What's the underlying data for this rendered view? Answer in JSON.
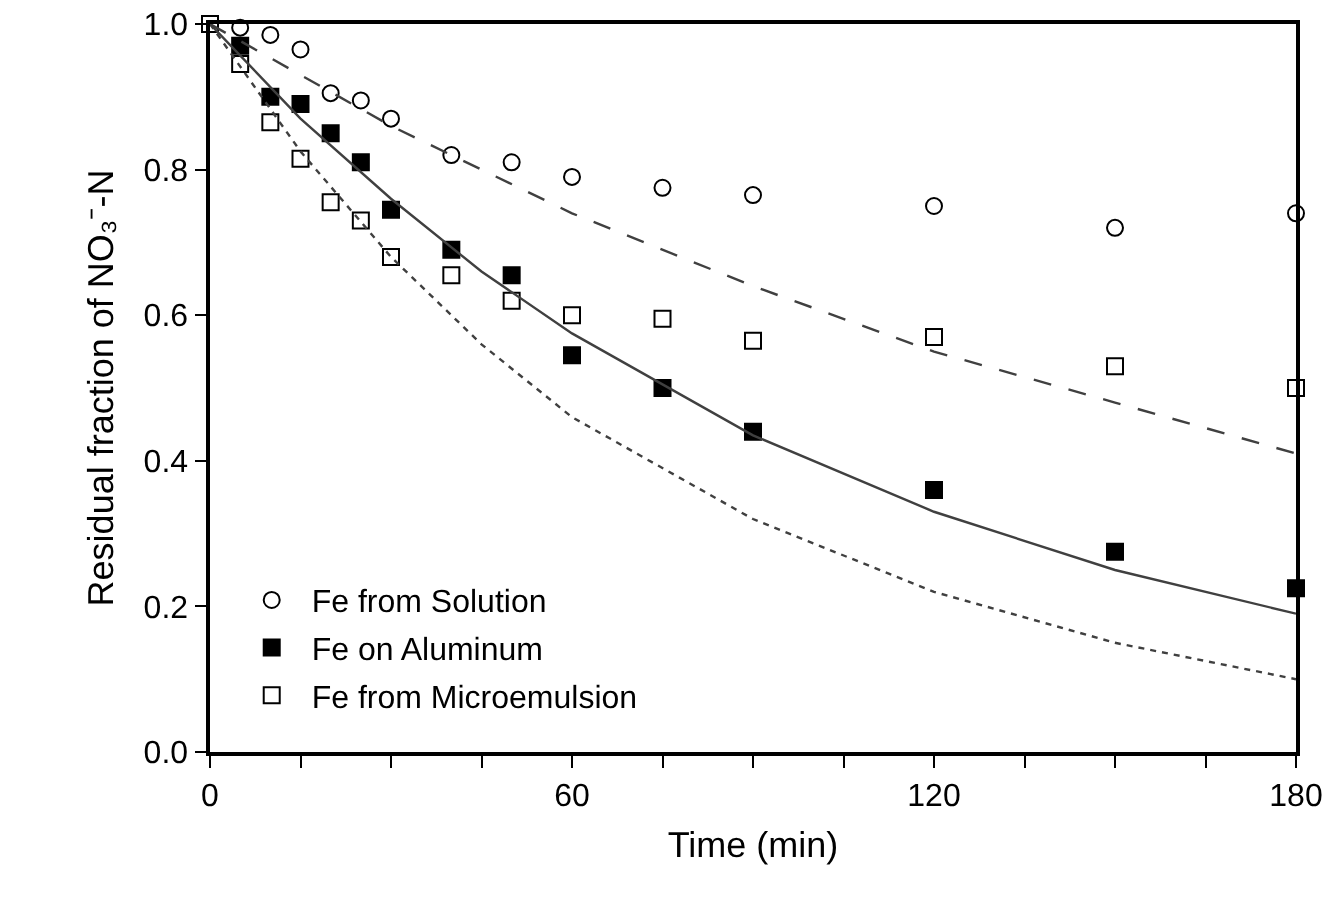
{
  "chart_data": {
    "type": "scatter",
    "xlabel": "Time (min)",
    "ylabel": "Residual fraction of NO₃⁻-N",
    "x": [
      0,
      5,
      10,
      15,
      20,
      25,
      30,
      40,
      50,
      60,
      75,
      90,
      120,
      150,
      180
    ],
    "series": [
      {
        "name": "Fe from Solution",
        "color": "#ffffff",
        "marker": "circle",
        "values": [
          null,
          0.995,
          0.985,
          0.965,
          0.905,
          0.895,
          0.87,
          0.82,
          0.81,
          0.79,
          0.775,
          0.765,
          0.75,
          0.72,
          0.74
        ]
      },
      {
        "name": "Fe on Aluminum",
        "color": "#000000",
        "marker": "square",
        "values": [
          null,
          0.97,
          0.9,
          0.89,
          0.85,
          0.81,
          0.745,
          0.69,
          0.655,
          0.545,
          0.5,
          0.44,
          0.36,
          0.275,
          0.225
        ]
      },
      {
        "name": "Fe from Microemulsion",
        "color": "#ffffff",
        "marker": "square",
        "values": [
          1.0,
          0.945,
          0.865,
          0.815,
          0.755,
          0.73,
          0.68,
          0.655,
          0.62,
          0.6,
          0.595,
          0.565,
          0.57,
          0.53,
          0.5
        ]
      },
      {
        "type": "line",
        "color": "#404040",
        "line_style": "dashed",
        "marker": "none",
        "x": [
          0,
          15,
          30,
          45,
          60,
          90,
          120,
          150,
          180
        ],
        "values": [
          1.0,
          0.93,
          0.86,
          0.8,
          0.74,
          0.64,
          0.55,
          0.48,
          0.41
        ]
      },
      {
        "type": "line",
        "color": "#404040",
        "line_style": "solid",
        "marker": "none",
        "x": [
          0,
          15,
          30,
          45,
          60,
          90,
          120,
          150,
          180
        ],
        "values": [
          1.0,
          0.87,
          0.76,
          0.66,
          0.575,
          0.435,
          0.33,
          0.25,
          0.19
        ]
      },
      {
        "type": "line",
        "color": "#404040",
        "line_style": "dotted",
        "marker": "none",
        "x": [
          0,
          15,
          30,
          45,
          60,
          90,
          120,
          150,
          180
        ],
        "values": [
          1.0,
          0.825,
          0.68,
          0.56,
          0.46,
          0.32,
          0.22,
          0.15,
          0.1
        ]
      }
    ],
    "xlim": [
      0,
      180
    ],
    "xticks": [
      0,
      {
        "value": 15,
        "label": null
      },
      {
        "value": 30,
        "label": null
      },
      {
        "value": 45,
        "label": null
      },
      60,
      {
        "value": 75,
        "label": null
      },
      {
        "value": 90,
        "label": null
      },
      {
        "value": 105,
        "label": null
      },
      120,
      {
        "value": 135,
        "label": null
      },
      {
        "value": 150,
        "label": null
      },
      {
        "value": 165,
        "label": null
      },
      180
    ],
    "ylim": [
      0,
      1
    ],
    "yticks": [
      {
        "value": 0,
        "label": "0.0"
      },
      {
        "value": 0.2,
        "label": "0.2"
      },
      {
        "value": 0.4,
        "label": "0.4"
      },
      {
        "value": 0.6,
        "label": "0.6"
      },
      {
        "value": 0.8,
        "label": "0.8"
      },
      {
        "value": 1,
        "label": "1.0"
      }
    ],
    "grid": false,
    "legend": "bottom left"
  }
}
